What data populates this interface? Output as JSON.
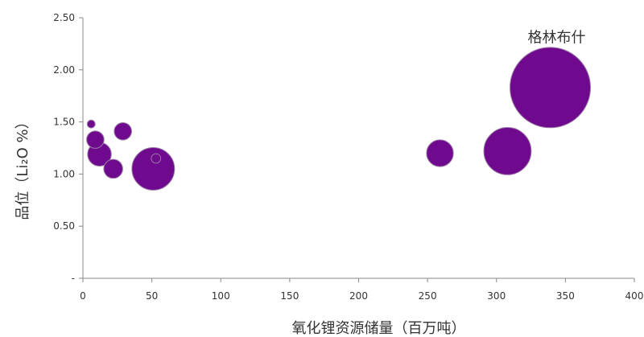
{
  "chart_data": {
    "type": "scatter",
    "subtype": "bubble",
    "title": "",
    "xlabel": "氧化锂资源储量（百万吨）",
    "ylabel": "品位（Li₂O %）",
    "xlim": [
      0,
      400
    ],
    "ylim": [
      0,
      2.5
    ],
    "x_ticks": [
      0,
      50,
      100,
      150,
      200,
      250,
      300,
      350,
      400
    ],
    "x_tick_labels": [
      "0",
      "50",
      "100",
      "150",
      "200",
      "250",
      "300",
      "350",
      "400"
    ],
    "y_ticks": [
      0,
      0.5,
      1.0,
      1.5,
      2.0,
      2.5
    ],
    "y_tick_labels": [
      "-",
      "0.50",
      "1.00",
      "1.50",
      "2.00",
      "2.50"
    ],
    "grid": false,
    "bubble_color": "#6f0a8f",
    "points": [
      {
        "x": 6,
        "y": 1.48,
        "size": 5
      },
      {
        "x": 9,
        "y": 1.33,
        "size": 11
      },
      {
        "x": 12,
        "y": 1.19,
        "size": 15
      },
      {
        "x": 22,
        "y": 1.05,
        "size": 12
      },
      {
        "x": 29,
        "y": 1.41,
        "size": 11
      },
      {
        "x": 51,
        "y": 1.05,
        "size": 27
      },
      {
        "x": 53,
        "y": 1.15,
        "size": 6
      },
      {
        "x": 259,
        "y": 1.2,
        "size": 17
      },
      {
        "x": 308,
        "y": 1.22,
        "size": 30
      },
      {
        "x": 339,
        "y": 1.83,
        "size": 51
      }
    ],
    "annotations": [
      {
        "text": "格林布什",
        "x": 339,
        "y": 2.32
      }
    ]
  }
}
